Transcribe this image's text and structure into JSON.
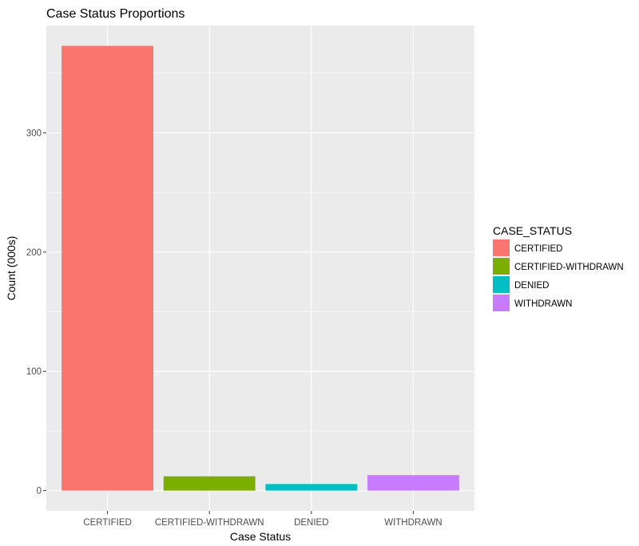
{
  "chart_data": {
    "type": "bar",
    "title": "Case Status Proportions",
    "xlabel": "Case Status",
    "ylabel": "Count (000s)",
    "categories": [
      "CERTIFIED",
      "CERTIFIED-WITHDRAWN",
      "DENIED",
      "WITHDRAWN"
    ],
    "values": [
      373,
      12,
      5.5,
      13
    ],
    "ylim": [
      -17,
      390
    ],
    "yticks": [
      0,
      100,
      200,
      300
    ],
    "ytick_labels": [
      "0",
      "100",
      "200",
      "300"
    ],
    "colors": [
      "#F8766D",
      "#7CAE00",
      "#00BFC4",
      "#C77CFF"
    ],
    "grid": true,
    "legend": {
      "title": "CASE_STATUS",
      "position": "right",
      "items": [
        "CERTIFIED",
        "CERTIFIED-WITHDRAWN",
        "DENIED",
        "WITHDRAWN"
      ]
    }
  }
}
